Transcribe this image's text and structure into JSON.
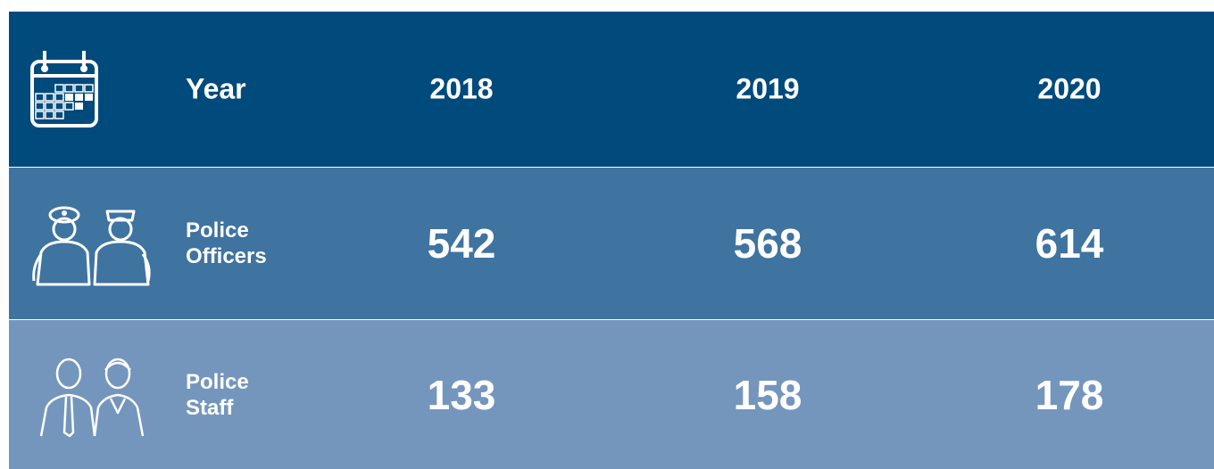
{
  "table": {
    "header": [
      "Year",
      "2018",
      "2019",
      "2020"
    ],
    "rows": [
      [
        "Police Officers",
        542,
        568,
        614
      ],
      [
        "Police Staff",
        133,
        158,
        178
      ]
    ]
  }
}
